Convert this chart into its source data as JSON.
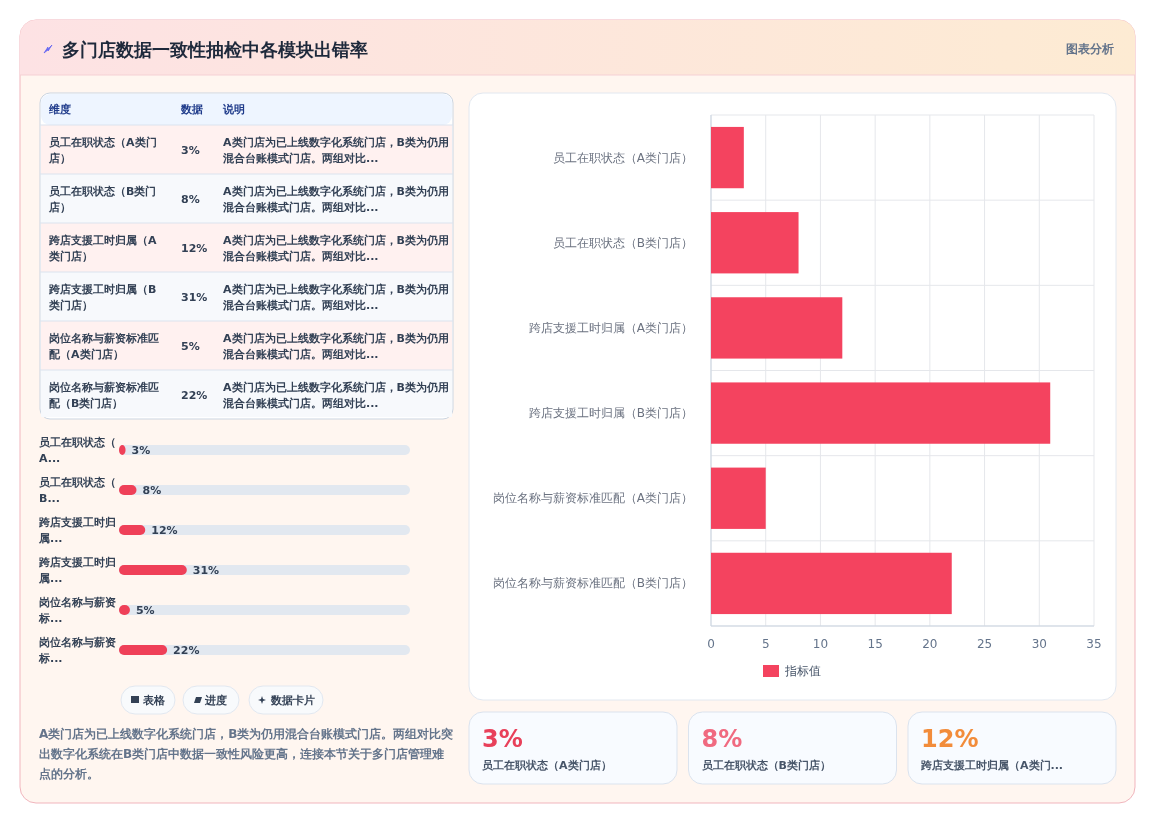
{
  "chart_data": [
    {
      "type": "other",
      "title": "多门店数据一致性抽检中各模块出错率",
      "annotations": [
        "图表分析"
      ]
    },
    {
      "type": "bar",
      "orientation": "horizontal",
      "categories": [
        "员工在职状态（A类门店）",
        "员工在职状态（B类门店）",
        "跨店支援工时归属（A类门店）",
        "跨店支援工时归属（B类门店）",
        "岗位名称与薪资标准匹配（A类门店）",
        "岗位名称与薪资标准匹配（B类门店）"
      ],
      "series": [
        {
          "name": "指标值",
          "color": "#f4435f",
          "values": [
            3,
            8,
            12,
            31,
            5,
            22
          ]
        }
      ],
      "xlim": [
        0,
        35
      ],
      "xticks": [
        0,
        5,
        10,
        15,
        20,
        25,
        30,
        35
      ],
      "grid": true,
      "legend": "bottom"
    },
    {
      "type": "other",
      "annotations": [
        "维度",
        "数据",
        "说明",
        "员工在职状态（A类门店）",
        "3%",
        "A类门店为已上线数字化系统门店，B类为仍用混合台账模式门店。两组对比...",
        "员工在职状态（B类门店）",
        "8%",
        "A类门店为已上线数字化系统门店，B类为仍用混合台账模式门店。两组对比...",
        "跨店支援工时归属（A类门店）",
        "12%",
        "A类门店为已上线数字化系统门店，B类为仍用混合台账模式门店。两组对比...",
        "跨店支援工时归属（B类门店）",
        "31%",
        "A类门店为已上线数字化系统门店，B类为仍用混合台账模式门店。两组对比...",
        "岗位名称与薪资标准匹配（A类门店）",
        "5%",
        "A类门店为已上线数字化系统门店，B类为仍用混合台账模式门店。两组对比...",
        "岗位名称与薪资标准匹配（B类门店）",
        "22%",
        "A类门店为已上线数字化系统门店，B类为仍用混合台账模式门店。两组对比..."
      ]
    },
    {
      "type": "bar",
      "orientation": "horizontal",
      "categories": [
        "员工在职状态（A...",
        "员工在职状态（B...",
        "跨店支援工时归属...",
        "跨店支援工时归属...",
        "岗位名称与薪资标...",
        "岗位名称与薪资标..."
      ],
      "series": [
        {
          "color": "#ef4058",
          "values": [
            3,
            8,
            12,
            31,
            5,
            22
          ],
          "value_labels": [
            "3%",
            "8%",
            "12%",
            "31%",
            "5%",
            "22%"
          ]
        }
      ],
      "tick_labels": "y",
      "annotations": [
        "表格",
        "进度",
        "数据卡片",
        "A类门店为已上线数字化系统门店，B类为仍用混合台账模式门店。两组对比突出数字化系统在B类门店中数据一致性风险更高，连接本节关于多门店管理难点的分析。"
      ]
    },
    {
      "type": "other",
      "annotations": [
        "3%",
        "员工在职状态（A类门店）",
        "8%",
        "员工在职状态（B类门店）",
        "12%",
        "跨店支援工时归属（A类门..."
      ],
      "colors": [
        "#e8405a",
        "#f06a80",
        "#f28c3a"
      ]
    }
  ]
}
